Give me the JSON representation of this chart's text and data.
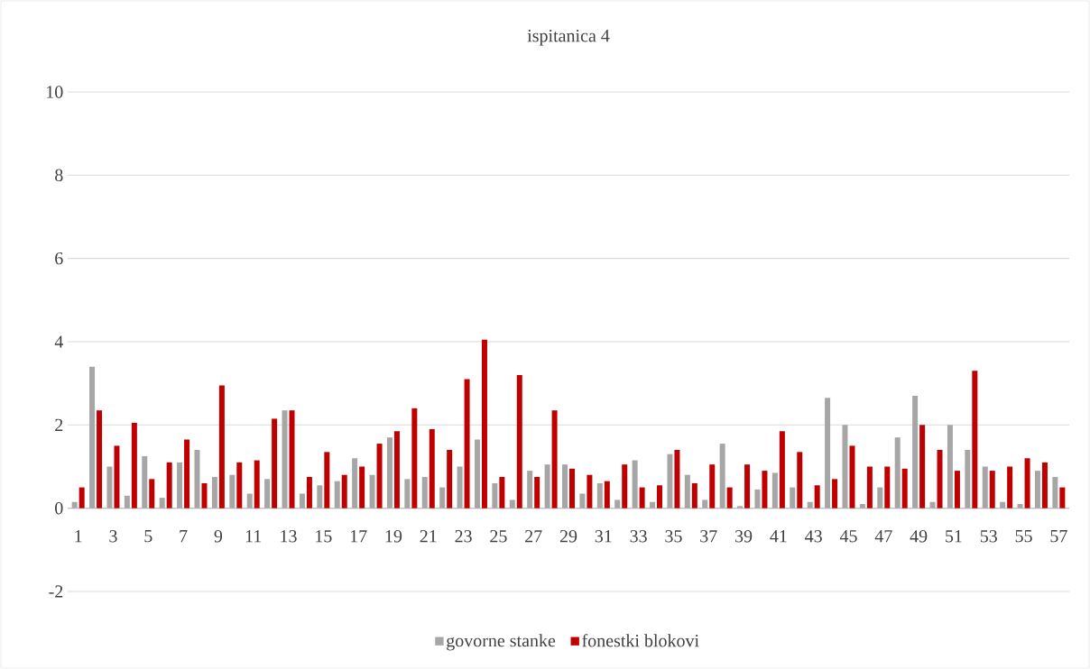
{
  "chart_data": {
    "type": "bar",
    "title": "ispitanica 4",
    "categories": [
      "1",
      null,
      "3",
      null,
      "5",
      null,
      "7",
      null,
      "9",
      null,
      "11",
      null,
      "13",
      null,
      "15",
      null,
      "17",
      null,
      "19",
      null,
      "21",
      null,
      "23",
      null,
      "25",
      null,
      "27",
      null,
      "29",
      null,
      "31",
      null,
      "33",
      null,
      "35",
      null,
      "37",
      null,
      "39",
      null,
      "41",
      null,
      "43",
      null,
      "45",
      null,
      "47",
      null,
      "49",
      null,
      "51",
      null,
      "53",
      null,
      "55",
      null,
      "57"
    ],
    "series": [
      {
        "name": "govorne stanke",
        "color": "#a6a6a6",
        "values": [
          0.15,
          3.4,
          1.0,
          0.3,
          1.25,
          0.25,
          1.1,
          1.4,
          0.75,
          0.8,
          0.35,
          0.7,
          2.35,
          0.35,
          0.55,
          0.65,
          1.2,
          0.8,
          1.7,
          0.7,
          0.75,
          0.5,
          1.0,
          1.65,
          0.6,
          0.2,
          0.9,
          1.05,
          1.05,
          0.35,
          0.6,
          0.2,
          1.15,
          0.15,
          1.3,
          0.8,
          0.2,
          1.55,
          0.05,
          0.45,
          0.85,
          0.5,
          0.15,
          2.65,
          2.0,
          0.1,
          0.5,
          1.7,
          2.7,
          0.15,
          2.0,
          1.4,
          1.0,
          0.15,
          0.1,
          0.9,
          0.75
        ]
      },
      {
        "name": "fonestki blokovi",
        "color": "#c00000",
        "values": [
          0.5,
          2.35,
          1.5,
          2.05,
          0.7,
          1.1,
          1.65,
          0.6,
          2.95,
          1.1,
          1.15,
          2.15,
          2.35,
          0.75,
          1.35,
          0.8,
          1.0,
          1.55,
          1.85,
          2.4,
          1.9,
          1.4,
          3.1,
          4.05,
          0.75,
          3.2,
          0.75,
          2.35,
          0.95,
          0.8,
          0.65,
          1.05,
          0.5,
          0.55,
          1.4,
          0.6,
          1.05,
          0.5,
          1.05,
          0.9,
          1.85,
          1.35,
          0.55,
          0.7,
          1.5,
          1.0,
          1.0,
          0.95,
          2.0,
          1.4,
          0.9,
          3.3,
          0.9,
          1.0,
          1.2,
          1.1,
          0.5
        ]
      }
    ],
    "ylim": [
      -2,
      10
    ],
    "yticks": [
      -2,
      0,
      2,
      4,
      6,
      8,
      10
    ],
    "grid": "y",
    "legend": "bottom"
  }
}
